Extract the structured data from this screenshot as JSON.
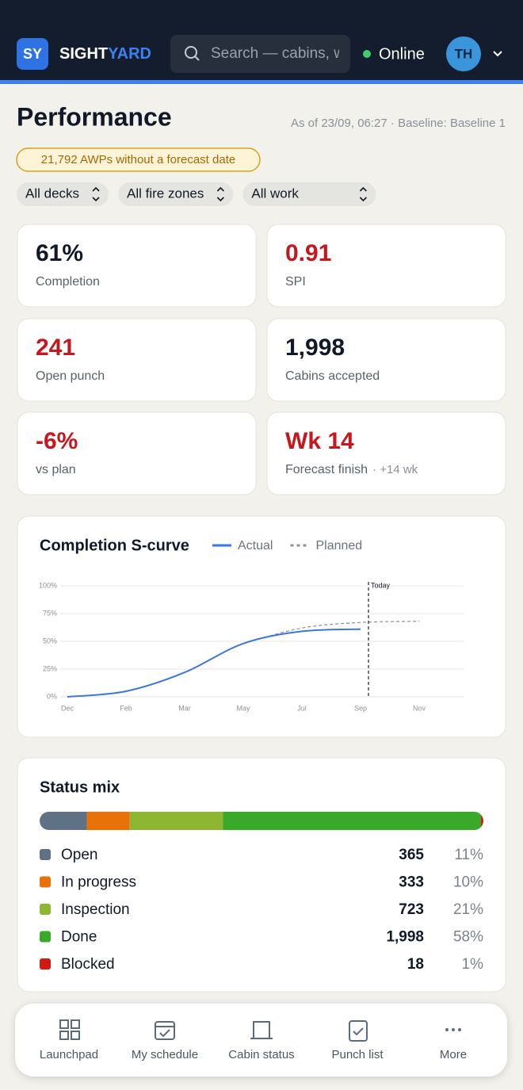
{
  "header": {
    "logo": "SY",
    "brand_1": "SIGHT",
    "brand_2": "YARD",
    "search_placeholder": "Search — cabins, w",
    "status": "Online",
    "avatar": "TH"
  },
  "page": {
    "title": "Performance",
    "meta": "As of 23/09, 06:27 · Baseline: Baseline 1",
    "alert": "21,792 AWPs without a forecast date",
    "filters": [
      "All decks",
      "All fire zones",
      "All work"
    ]
  },
  "kpis": [
    {
      "value": "61%",
      "label": "Completion",
      "color": "#111827"
    },
    {
      "value": "0.91",
      "label": "SPI",
      "color": "#c8161d"
    },
    {
      "value": "241",
      "label": "Open punch",
      "color": "#c8161d"
    },
    {
      "value": "1,998",
      "label": "Cabins accepted",
      "color": "#111827"
    },
    {
      "value": "-6%",
      "label": "vs plan",
      "color": "#c8161d"
    },
    {
      "value": "Wk 14",
      "label": "Forecast finish",
      "note": "· +14 wk",
      "color": "#c8161d"
    }
  ],
  "chart_data": [
    {
      "type": "line",
      "title": "Completion S-curve",
      "categories": [
        "Dec",
        "Feb",
        "Mar",
        "May",
        "Jul",
        "Sep",
        "Nov"
      ],
      "series": [
        {
          "name": "Actual",
          "color": "#3b76e1",
          "dashed": false,
          "values": [
            0,
            5,
            22,
            48,
            59,
            61,
            null
          ]
        },
        {
          "name": "Planned",
          "color": "#8a8f98",
          "dashed": true,
          "values": [
            null,
            null,
            null,
            48,
            62,
            67,
            68
          ]
        }
      ],
      "ylim": [
        0,
        100
      ],
      "yticks": [
        {
          "value": 0,
          "label": "0%"
        },
        {
          "value": 25,
          "label": "25%"
        },
        {
          "value": 50,
          "label": "50%"
        },
        {
          "value": 75,
          "label": "75%"
        },
        {
          "value": 100,
          "label": "100%"
        }
      ],
      "grid": true,
      "annotation": {
        "text": "Today",
        "x": "Sep"
      }
    },
    {
      "type": "stacked-bar",
      "title": "Status mix",
      "categories": [
        "Open",
        "In progress",
        "Inspection",
        "Done",
        "Blocked"
      ],
      "values": [
        365,
        333,
        723,
        1998,
        18
      ],
      "value_labels": [
        "365",
        "333",
        "723",
        "1,998",
        "18"
      ],
      "shares": [
        11,
        10,
        21,
        58,
        1
      ],
      "share_labels": [
        "11%",
        "10%",
        "21%",
        "58%",
        "1%"
      ],
      "colors": [
        "#5f7285",
        "#e8710a",
        "#8db631",
        "#3aa829",
        "#d0190f"
      ]
    }
  ],
  "nav": {
    "items": [
      "Launchpad",
      "My schedule",
      "Cabin status",
      "Punch list",
      "More"
    ]
  }
}
